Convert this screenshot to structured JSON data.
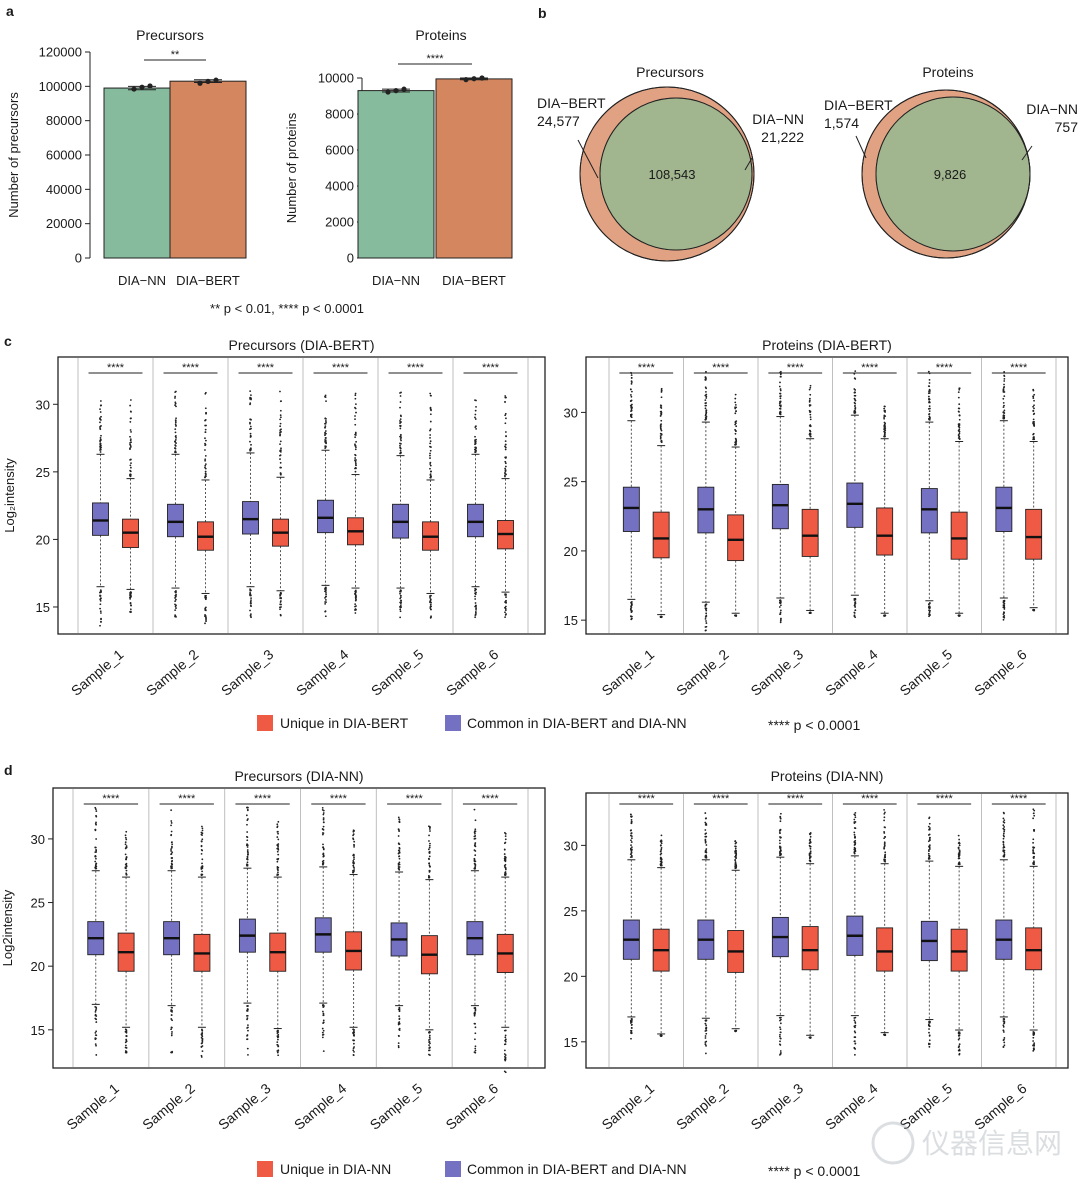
{
  "colors": {
    "dia_nn": "#86bb9d",
    "dia_bert": "#d4875f",
    "venn_bert": "#e0a283",
    "venn_nn": "#a9cfba",
    "venn_overlap": "#a1b58e",
    "unique_box": "#ef5a45",
    "common_box": "#7470c2",
    "panel_bg": "#ffffff",
    "grid": "#bfbfbf"
  },
  "panel_letters": {
    "a": "a",
    "b": "b",
    "c": "c",
    "d": "d"
  },
  "watermark": "仪器信息网",
  "chart_data": [
    {
      "type": "bar",
      "title": "Precursors",
      "xlabel": "",
      "ylabel": "Number of precursors",
      "categories": [
        "DIA−NN",
        "DIA−BERT"
      ],
      "values": [
        99000,
        103000
      ],
      "errors": [
        1000,
        800
      ],
      "points": [
        [
          98400,
          99500,
          100200
        ],
        [
          101800,
          102900,
          103600
        ]
      ],
      "ylim": [
        0,
        120000
      ],
      "yticks": [
        0,
        20000,
        40000,
        60000,
        80000,
        100000,
        120000
      ],
      "ytick_labels": [
        "0",
        "20000",
        "40000",
        "60000",
        "80000",
        "100000",
        "120000"
      ],
      "significance": "**"
    },
    {
      "type": "bar",
      "title": "Proteins",
      "xlabel": "",
      "ylabel": "Number of proteins",
      "categories": [
        "DIA−NN",
        "DIA−BERT"
      ],
      "values": [
        9300,
        9950
      ],
      "errors": [
        80,
        50
      ],
      "points": [
        [
          9220,
          9300,
          9380
        ],
        [
          9910,
          9960,
          10000
        ]
      ],
      "ylim": [
        0,
        10000
      ],
      "yticks": [
        0,
        2000,
        4000,
        6000,
        8000,
        10000
      ],
      "ytick_labels": [
        "0",
        "2000",
        "4000",
        "6000",
        "8000",
        "10000"
      ],
      "significance": "****",
      "footnote": "** p < 0.01, **** p < 0.0001"
    },
    {
      "type": "venn",
      "title": "Precursors",
      "sets": [
        {
          "name": "DIA−BERT",
          "unique": "24,577"
        },
        {
          "name": "DIA−NN",
          "unique": "21,222"
        }
      ],
      "overlap": "108,543"
    },
    {
      "type": "venn",
      "title": "Proteins",
      "sets": [
        {
          "name": "DIA−BERT",
          "unique": "1,574"
        },
        {
          "name": "DIA−NN",
          "unique": "757"
        }
      ],
      "overlap": "9,826"
    },
    {
      "type": "box",
      "title": "Precursors (DIA-BERT)",
      "ylabel": "Log₂intensity",
      "ylim": [
        13,
        33.5
      ],
      "yticks": [
        15,
        20,
        25,
        30
      ],
      "categories": [
        "Sample_1",
        "Sample_2",
        "Sample_3",
        "Sample_4",
        "Sample_5",
        "Sample_6"
      ],
      "significance": "****",
      "series": [
        {
          "name": "Common in DIA-BERT and DIA-NN",
          "boxes": [
            {
              "lw": 16.5,
              "q1": 20.3,
              "med": 21.4,
              "q3": 22.7,
              "uw": 26.3,
              "ol": 13.5,
              "oh": 30.5
            },
            {
              "lw": 16.4,
              "q1": 20.2,
              "med": 21.3,
              "q3": 22.6,
              "uw": 26.3,
              "ol": 14.0,
              "oh": 31.0
            },
            {
              "lw": 16.5,
              "q1": 20.4,
              "med": 21.5,
              "q3": 22.8,
              "uw": 26.4,
              "ol": 14.2,
              "oh": 31.0
            },
            {
              "lw": 16.6,
              "q1": 20.5,
              "med": 21.6,
              "q3": 22.9,
              "uw": 26.6,
              "ol": 14.3,
              "oh": 31.0
            },
            {
              "lw": 16.4,
              "q1": 20.1,
              "med": 21.3,
              "q3": 22.6,
              "uw": 26.2,
              "ol": 14.2,
              "oh": 31.0
            },
            {
              "lw": 16.5,
              "q1": 20.2,
              "med": 21.3,
              "q3": 22.6,
              "uw": 26.3,
              "ol": 14.2,
              "oh": 31.0
            }
          ]
        },
        {
          "name": "Unique in DIA-BERT",
          "boxes": [
            {
              "lw": 16.3,
              "q1": 19.4,
              "med": 20.5,
              "q3": 21.5,
              "uw": 24.5,
              "ol": 14.5,
              "oh": 31.0
            },
            {
              "lw": 16.0,
              "q1": 19.2,
              "med": 20.2,
              "q3": 21.3,
              "uw": 24.4,
              "ol": 13.5,
              "oh": 31.0
            },
            {
              "lw": 16.2,
              "q1": 19.5,
              "med": 20.5,
              "q3": 21.5,
              "uw": 24.6,
              "ol": 14.2,
              "oh": 31.0
            },
            {
              "lw": 16.4,
              "q1": 19.6,
              "med": 20.6,
              "q3": 21.6,
              "uw": 24.8,
              "ol": 14.5,
              "oh": 30.8
            },
            {
              "lw": 16.0,
              "q1": 19.2,
              "med": 20.2,
              "q3": 21.3,
              "uw": 24.4,
              "ol": 14.0,
              "oh": 31.0
            },
            {
              "lw": 16.1,
              "q1": 19.3,
              "med": 20.4,
              "q3": 21.4,
              "uw": 24.5,
              "ol": 14.0,
              "oh": 31.0
            }
          ]
        }
      ]
    },
    {
      "type": "box",
      "title": "Proteins (DIA-BERT)",
      "ylabel": "",
      "ylim": [
        14,
        34
      ],
      "yticks": [
        15,
        20,
        25,
        30
      ],
      "categories": [
        "Sample_1",
        "Sample_2",
        "Sample_3",
        "Sample_4",
        "Sample_5",
        "Sample_6"
      ],
      "significance": "****",
      "series": [
        {
          "name": "Common in DIA-BERT and DIA-NN",
          "boxes": [
            {
              "lw": 16.5,
              "q1": 21.4,
              "med": 23.1,
              "q3": 24.6,
              "uw": 29.4,
              "ol": 15.0,
              "oh": 33.0
            },
            {
              "lw": 16.3,
              "q1": 21.3,
              "med": 23.0,
              "q3": 24.6,
              "uw": 29.3,
              "ol": 14.0,
              "oh": 33.0
            },
            {
              "lw": 16.6,
              "q1": 21.6,
              "med": 23.3,
              "q3": 24.8,
              "uw": 29.7,
              "ol": 14.8,
              "oh": 33.0
            },
            {
              "lw": 16.8,
              "q1": 21.7,
              "med": 23.4,
              "q3": 24.9,
              "uw": 29.8,
              "ol": 15.2,
              "oh": 33.0
            },
            {
              "lw": 16.4,
              "q1": 21.3,
              "med": 23.0,
              "q3": 24.5,
              "uw": 29.3,
              "ol": 15.0,
              "oh": 33.0
            },
            {
              "lw": 16.6,
              "q1": 21.4,
              "med": 23.1,
              "q3": 24.6,
              "uw": 29.4,
              "ol": 15.0,
              "oh": 33.0
            }
          ]
        },
        {
          "name": "Unique in DIA-BERT",
          "boxes": [
            {
              "lw": 15.4,
              "q1": 19.5,
              "med": 20.9,
              "q3": 22.8,
              "uw": 27.6,
              "ol": 15.2,
              "oh": 32.0
            },
            {
              "lw": 15.5,
              "q1": 19.3,
              "med": 20.8,
              "q3": 22.6,
              "uw": 27.5,
              "ol": 15.3,
              "oh": 31.5
            },
            {
              "lw": 15.7,
              "q1": 19.6,
              "med": 21.1,
              "q3": 23.0,
              "uw": 28.1,
              "ol": 15.5,
              "oh": 32.3
            },
            {
              "lw": 15.5,
              "q1": 19.7,
              "med": 21.1,
              "q3": 23.1,
              "uw": 28.1,
              "ol": 15.3,
              "oh": 30.5
            },
            {
              "lw": 15.5,
              "q1": 19.4,
              "med": 20.9,
              "q3": 22.8,
              "uw": 27.9,
              "ol": 15.3,
              "oh": 32.2
            },
            {
              "lw": 15.9,
              "q1": 19.4,
              "med": 21.0,
              "q3": 23.0,
              "uw": 27.9,
              "ol": 15.7,
              "oh": 32.2
            }
          ]
        }
      ]
    },
    {
      "type": "box",
      "title": "Precursors (DIA-NN)",
      "ylabel": "Log2intensity",
      "ylim": [
        12,
        34
      ],
      "yticks": [
        15,
        20,
        25,
        30
      ],
      "categories": [
        "Sample_1",
        "Sample_2",
        "Sample_3",
        "Sample_4",
        "Sample_5",
        "Sample_6"
      ],
      "significance": "****",
      "series": [
        {
          "name": "Common in DIA-BERT and DIA-NN",
          "boxes": [
            {
              "lw": 17.0,
              "q1": 20.9,
              "med": 22.2,
              "q3": 23.5,
              "uw": 27.5,
              "ol": 13.0,
              "oh": 32.5
            },
            {
              "lw": 16.9,
              "q1": 20.9,
              "med": 22.2,
              "q3": 23.5,
              "uw": 27.5,
              "ol": 13.0,
              "oh": 32.3
            },
            {
              "lw": 17.1,
              "q1": 21.1,
              "med": 22.4,
              "q3": 23.7,
              "uw": 27.7,
              "ol": 13.0,
              "oh": 32.5
            },
            {
              "lw": 17.1,
              "q1": 21.1,
              "med": 22.5,
              "q3": 23.8,
              "uw": 27.8,
              "ol": 13.0,
              "oh": 32.5
            },
            {
              "lw": 16.9,
              "q1": 20.8,
              "med": 22.1,
              "q3": 23.4,
              "uw": 27.4,
              "ol": 13.0,
              "oh": 32.2
            },
            {
              "lw": 16.9,
              "q1": 20.9,
              "med": 22.2,
              "q3": 23.5,
              "uw": 27.5,
              "ol": 13.0,
              "oh": 32.5
            }
          ]
        },
        {
          "name": "Unique in DIA-NN",
          "boxes": [
            {
              "lw": 15.2,
              "q1": 19.6,
              "med": 21.1,
              "q3": 22.6,
              "uw": 27.0,
              "ol": 13.2,
              "oh": 31.0
            },
            {
              "lw": 15.2,
              "q1": 19.6,
              "med": 21.0,
              "q3": 22.5,
              "uw": 27.0,
              "ol": 12.8,
              "oh": 31.0
            },
            {
              "lw": 15.1,
              "q1": 19.6,
              "med": 21.1,
              "q3": 22.6,
              "uw": 27.0,
              "ol": 13.0,
              "oh": 31.5
            },
            {
              "lw": 15.2,
              "q1": 19.7,
              "med": 21.2,
              "q3": 22.7,
              "uw": 27.2,
              "ol": 13.0,
              "oh": 31.0
            },
            {
              "lw": 15.0,
              "q1": 19.4,
              "med": 20.9,
              "q3": 22.4,
              "uw": 26.8,
              "ol": 13.0,
              "oh": 31.0
            },
            {
              "lw": 15.2,
              "q1": 19.5,
              "med": 21.0,
              "q3": 22.5,
              "uw": 27.0,
              "ol": 11.5,
              "oh": 31.0
            }
          ]
        }
      ]
    },
    {
      "type": "box",
      "title": "Proteins (DIA-NN)",
      "ylabel": "",
      "ylim": [
        13,
        34
      ],
      "yticks": [
        15,
        20,
        25,
        30
      ],
      "categories": [
        "Sample_1",
        "Sample_2",
        "Sample_3",
        "Sample_4",
        "Sample_5",
        "Sample_6"
      ],
      "significance": "****",
      "series": [
        {
          "name": "Common in DIA-BERT and DIA-NN",
          "boxes": [
            {
              "lw": 16.9,
              "q1": 21.3,
              "med": 22.8,
              "q3": 24.3,
              "uw": 28.9,
              "ol": 15.0,
              "oh": 32.5
            },
            {
              "lw": 16.8,
              "q1": 21.3,
              "med": 22.8,
              "q3": 24.3,
              "uw": 28.9,
              "ol": 14.0,
              "oh": 32.5
            },
            {
              "lw": 17.0,
              "q1": 21.5,
              "med": 23.0,
              "q3": 24.5,
              "uw": 29.1,
              "ol": 14.0,
              "oh": 32.5
            },
            {
              "lw": 17.0,
              "q1": 21.6,
              "med": 23.1,
              "q3": 24.6,
              "uw": 29.2,
              "ol": 14.0,
              "oh": 32.5
            },
            {
              "lw": 16.7,
              "q1": 21.2,
              "med": 22.7,
              "q3": 24.2,
              "uw": 28.8,
              "ol": 14.5,
              "oh": 32.5
            },
            {
              "lw": 16.9,
              "q1": 21.3,
              "med": 22.8,
              "q3": 24.3,
              "uw": 28.9,
              "ol": 14.5,
              "oh": 32.5
            }
          ]
        },
        {
          "name": "Unique in DIA-NN",
          "boxes": [
            {
              "lw": 15.6,
              "q1": 20.4,
              "med": 22.0,
              "q3": 23.6,
              "uw": 28.3,
              "ol": 15.5,
              "oh": 30.8
            },
            {
              "lw": 16.0,
              "q1": 20.3,
              "med": 21.9,
              "q3": 23.5,
              "uw": 28.1,
              "ol": 15.8,
              "oh": 30.5
            },
            {
              "lw": 15.5,
              "q1": 20.5,
              "med": 22.0,
              "q3": 23.8,
              "uw": 28.6,
              "ol": 15.3,
              "oh": 31.2
            },
            {
              "lw": 15.7,
              "q1": 20.4,
              "med": 21.9,
              "q3": 23.7,
              "uw": 28.6,
              "ol": 15.5,
              "oh": 32.8
            },
            {
              "lw": 15.9,
              "q1": 20.4,
              "med": 21.9,
              "q3": 23.6,
              "uw": 28.4,
              "ol": 14.0,
              "oh": 30.8
            },
            {
              "lw": 15.9,
              "q1": 20.5,
              "med": 22.0,
              "q3": 23.7,
              "uw": 28.4,
              "ol": 14.0,
              "oh": 32.8
            }
          ]
        }
      ]
    }
  ],
  "legend_c": {
    "unique": "Unique in DIA-BERT",
    "common": "Common in DIA-BERT and DIA-NN",
    "pnote": "**** p < 0.0001"
  },
  "legend_d": {
    "unique": "Unique in DIA-NN",
    "common": "Common in DIA-BERT and DIA-NN",
    "pnote": "**** p < 0.0001"
  }
}
